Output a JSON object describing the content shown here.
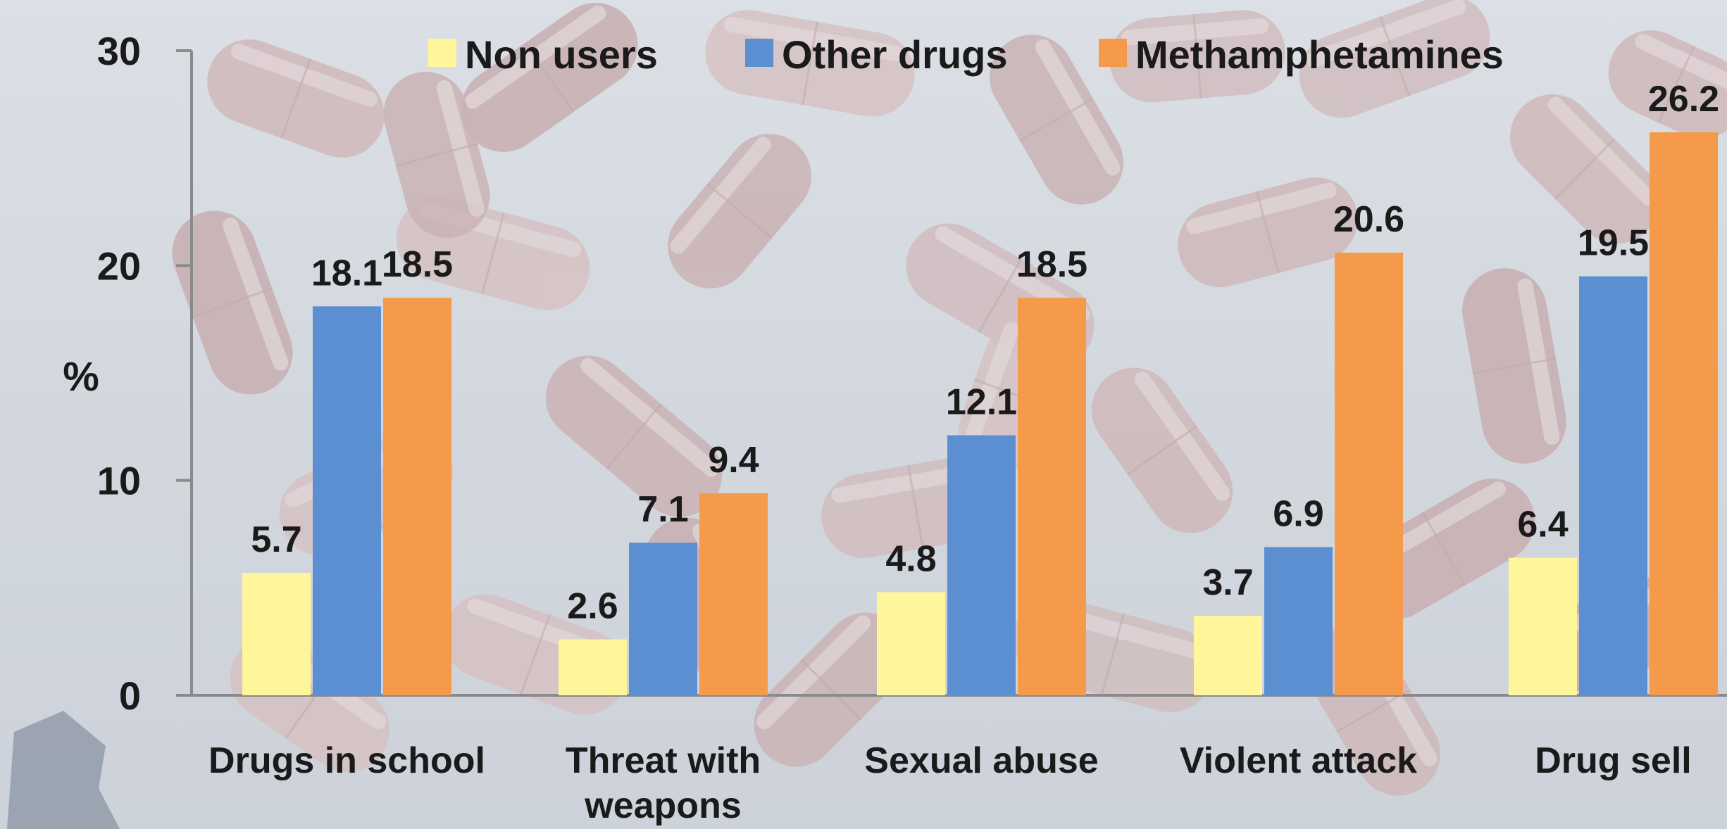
{
  "chart_data": {
    "type": "bar",
    "ylabel": "%",
    "xlabel": "",
    "ylim": [
      0,
      30
    ],
    "yticks": [
      0,
      10,
      20,
      30
    ],
    "grid": false,
    "legend_position": "top",
    "categories": [
      [
        "Drugs in school"
      ],
      [
        "Threat with",
        "weapons"
      ],
      [
        "Sexual abuse"
      ],
      [
        "Violent attack"
      ],
      [
        "Drug sell"
      ]
    ],
    "series": [
      {
        "name": "Non users",
        "color": "#fff59a",
        "values": [
          5.7,
          2.6,
          4.8,
          3.7,
          6.4
        ],
        "labels": [
          "5.7",
          "2.6",
          "4.8",
          "3.7",
          "6.4"
        ]
      },
      {
        "name": "Other drugs",
        "color": "#5b8fd1",
        "values": [
          18.1,
          7.1,
          12.1,
          6.9,
          19.5
        ],
        "labels": [
          "18.1",
          "7.1",
          "12.1",
          "6.9",
          "19.5"
        ]
      },
      {
        "name": "Methamphetamines",
        "color": "#f49a4a",
        "values": [
          18.5,
          9.4,
          18.5,
          20.6,
          26.2
        ],
        "labels": [
          "18.5",
          "9.4",
          "18.5",
          "20.6",
          "26.2"
        ]
      }
    ]
  }
}
